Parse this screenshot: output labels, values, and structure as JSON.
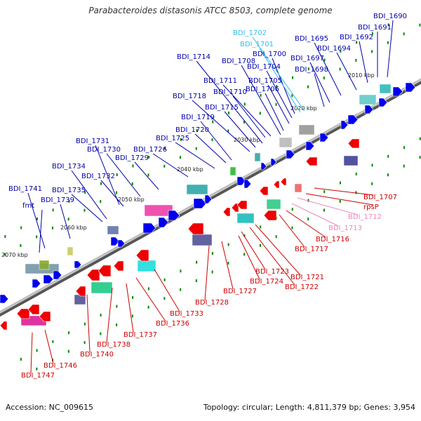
{
  "title": "Parabacteroides distasonis ATCC 8503, complete genome",
  "footer": {
    "accession": "Accession: NC_009615",
    "summary": "Topology: circular; Length: 4,811,379 bp; Genes: 3,954"
  },
  "colors": {
    "forward_label": "#0000aa",
    "reverse_label": "#cc0000",
    "light_forward_label": "#33bbee",
    "light_reverse_label": "#ee88bb",
    "forward_arrow": "#0000ee",
    "reverse_arrow": "#ee0000",
    "tick": "#008800",
    "backbone": "#888888"
  },
  "scale_labels": [
    "2010 kbp",
    "2020 kbp",
    "2030 kbp",
    "2040 kbp",
    "2050 kbp",
    "2060 kbp",
    "2070 kbp"
  ],
  "forward_genes": [
    "BDI_1690",
    "BDI_1691",
    "BDI_1692",
    "BDI_1694",
    "BDI_1695",
    "BDI_1697",
    "BDI_1698",
    "BDI_1700",
    "BDI_1701",
    "BDI_1702",
    "BDI_1704",
    "BDI_1705",
    "BDI_1706",
    "BDI_1708",
    "BDI_1710",
    "BDI_1711",
    "BDI_1714",
    "BDI_1715",
    "BDI_1718",
    "BDI_1719",
    "BDI_1720",
    "BDI_1725",
    "BDI_1726",
    "BDI_1729",
    "BDI_1730",
    "BDI_1731",
    "BDI_1732",
    "BDI_1734",
    "BDI_1735",
    "BDI_1739",
    "BDI_1741",
    "fmt"
  ],
  "reverse_genes": [
    "BDI_1707",
    "rpsP",
    "BDI_1712",
    "BDI_1713",
    "BDI_1716",
    "BDI_1717",
    "BDI_1721",
    "BDI_1722",
    "BDI_1723",
    "BDI_1724",
    "BDI_1727",
    "BDI_1728",
    "BDI_1733",
    "BDI_1736",
    "BDI_1737",
    "BDI_1738",
    "BDI_1740",
    "BDI_1746",
    "BDI_1747"
  ]
}
